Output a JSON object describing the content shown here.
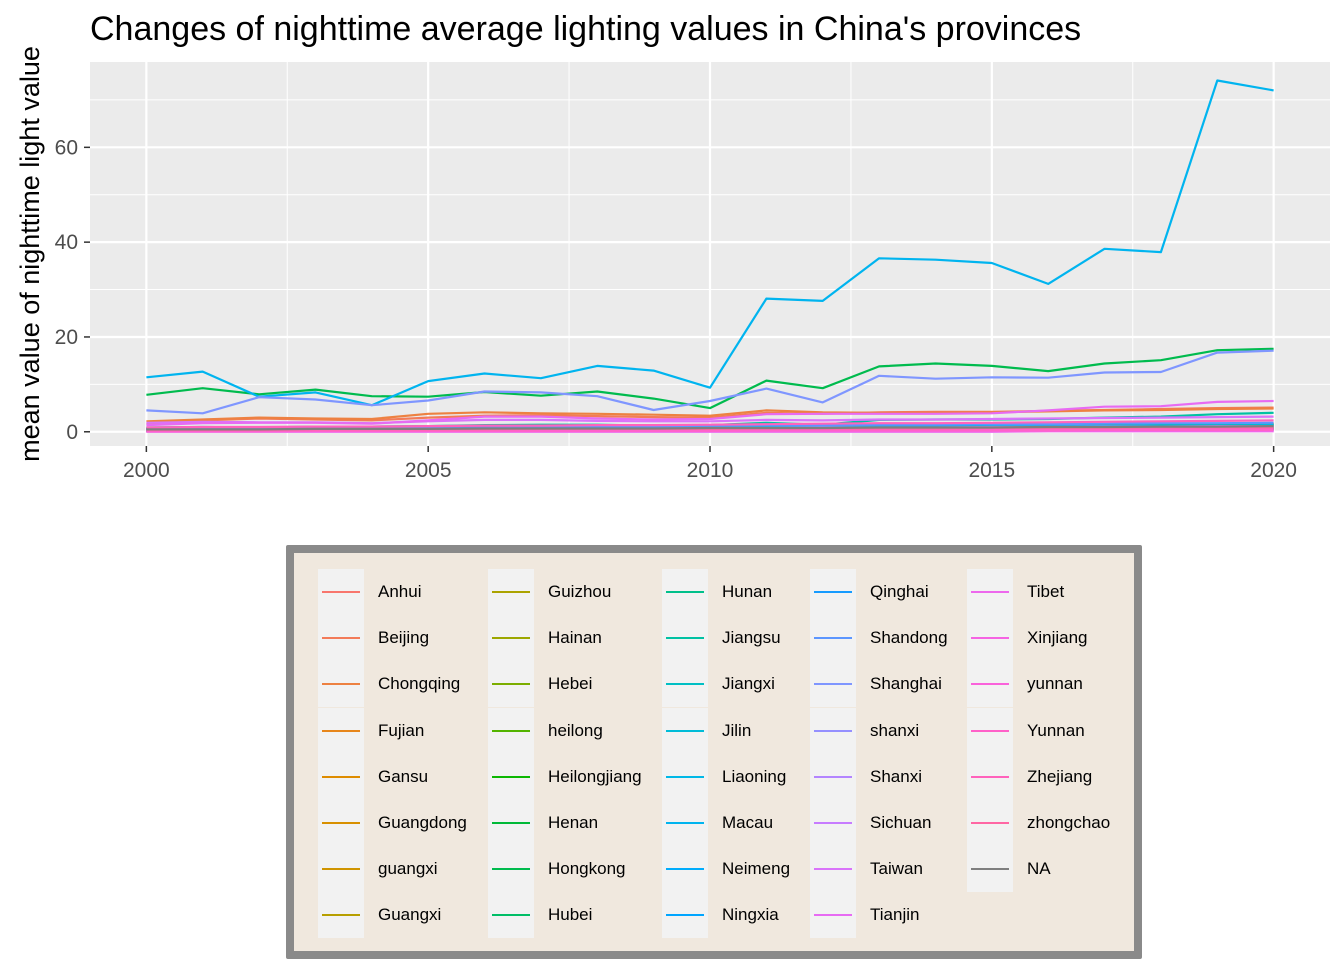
{
  "chart_data": {
    "type": "line",
    "title": "Changes of nighttime average lighting values in China's provinces",
    "xlabel": "",
    "ylabel": "mean value of nighttime light value",
    "xlim": [
      1999,
      2021
    ],
    "ylim": [
      -3,
      78
    ],
    "x_ticks": [
      2000,
      2005,
      2010,
      2015,
      2020
    ],
    "y_ticks": [
      0,
      20,
      40,
      60
    ],
    "grid": true,
    "legend_position": "bottom",
    "x": [
      2000,
      2001,
      2002,
      2003,
      2004,
      2005,
      2006,
      2007,
      2008,
      2009,
      2010,
      2011,
      2012,
      2013,
      2014,
      2015,
      2016,
      2017,
      2018,
      2019,
      2020
    ],
    "series": [
      {
        "name": "Anhui",
        "color": "#F8766D",
        "values": [
          0.4,
          0.5,
          0.5,
          0.6,
          0.6,
          0.6,
          0.7,
          0.7,
          0.7,
          0.7,
          0.8,
          0.9,
          0.9,
          1.0,
          1.0,
          1.0,
          1.1,
          1.1,
          1.2,
          1.3,
          1.3
        ]
      },
      {
        "name": "Beijing",
        "color": "#F37B59",
        "values": [
          1.6,
          2.4,
          2.8,
          2.6,
          2.4,
          3.0,
          3.4,
          3.5,
          3.3,
          3.1,
          3.0,
          4.0,
          3.8,
          4.1,
          4.2,
          4.2,
          4.4,
          4.6,
          4.8,
          5.0,
          5.1
        ]
      },
      {
        "name": "Chongqing",
        "color": "#ED8141",
        "values": [
          2.2,
          2.6,
          3.0,
          2.8,
          2.7,
          3.8,
          4.1,
          3.9,
          3.8,
          3.6,
          3.4,
          4.5,
          4.1,
          4.0,
          4.0,
          4.1,
          4.3,
          4.5,
          4.6,
          4.8,
          4.9
        ]
      },
      {
        "name": "Fujian",
        "color": "#E7861B",
        "values": [
          0.3,
          0.4,
          0.4,
          0.4,
          0.4,
          0.5,
          0.5,
          0.5,
          0.5,
          0.5,
          0.6,
          0.6,
          0.6,
          0.7,
          0.7,
          0.7,
          0.7,
          0.8,
          0.8,
          0.8,
          0.9
        ]
      },
      {
        "name": "Gansu",
        "color": "#DE8C00",
        "values": [
          0.2,
          0.2,
          0.2,
          0.3,
          0.3,
          0.3,
          0.3,
          0.3,
          0.3,
          0.3,
          0.4,
          0.4,
          0.4,
          0.4,
          0.4,
          0.5,
          0.5,
          0.5,
          0.5,
          0.6,
          0.6
        ]
      },
      {
        "name": "Guangdong",
        "color": "#D89000",
        "values": [
          0.6,
          0.7,
          0.7,
          0.8,
          0.8,
          0.9,
          0.9,
          0.9,
          1.0,
          1.0,
          1.1,
          1.2,
          1.2,
          1.3,
          1.3,
          1.4,
          1.4,
          1.5,
          1.6,
          1.6,
          1.7
        ]
      },
      {
        "name": "guangxi",
        "color": "#CF9400",
        "values": [
          0.3,
          0.3,
          0.3,
          0.4,
          0.4,
          0.4,
          0.4,
          0.5,
          0.5,
          0.5,
          0.5,
          0.6,
          0.6,
          0.6,
          0.6,
          0.7,
          0.7,
          0.7,
          0.8,
          0.8,
          0.8
        ]
      },
      {
        "name": "Guangxi",
        "color": "#B79F00",
        "values": [
          0.2,
          0.2,
          0.2,
          0.2,
          0.3,
          0.3,
          0.3,
          0.3,
          0.3,
          0.3,
          0.4,
          0.4,
          0.4,
          0.4,
          0.4,
          0.5,
          0.5,
          0.5,
          0.5,
          0.5,
          0.6
        ]
      },
      {
        "name": "Guizhou",
        "color": "#ABA300",
        "values": [
          0.3,
          0.3,
          0.3,
          0.3,
          0.3,
          0.3,
          0.4,
          0.4,
          0.4,
          0.4,
          0.4,
          0.5,
          0.5,
          0.5,
          0.5,
          0.6,
          0.6,
          0.6,
          0.7,
          0.7,
          0.7
        ]
      },
      {
        "name": "Hainan",
        "color": "#9DA700",
        "values": [
          0.4,
          0.5,
          0.5,
          0.5,
          0.5,
          0.6,
          0.6,
          0.6,
          0.6,
          0.6,
          0.7,
          0.7,
          0.7,
          0.8,
          0.8,
          0.8,
          0.9,
          0.9,
          1.0,
          1.0,
          1.1
        ]
      },
      {
        "name": "Hebei",
        "color": "#7CAE00",
        "values": [
          0.8,
          0.9,
          0.9,
          1.0,
          1.0,
          1.0,
          1.1,
          1.1,
          1.1,
          1.1,
          1.2,
          1.3,
          1.3,
          1.4,
          1.4,
          1.4,
          1.5,
          1.5,
          1.6,
          1.6,
          1.7
        ]
      },
      {
        "name": "heilong",
        "color": "#53B400",
        "values": [
          0.2,
          0.2,
          0.2,
          0.2,
          0.2,
          0.3,
          0.3,
          0.3,
          0.3,
          0.3,
          0.3,
          0.4,
          0.4,
          0.4,
          0.4,
          0.4,
          0.4,
          0.5,
          0.5,
          0.5,
          0.5
        ]
      },
      {
        "name": "Heilongjiang",
        "color": "#0CB702",
        "values": [
          0.2,
          0.2,
          0.2,
          0.2,
          0.3,
          0.3,
          0.3,
          0.3,
          0.3,
          0.3,
          0.3,
          0.4,
          0.4,
          0.4,
          0.4,
          0.4,
          0.5,
          0.5,
          0.5,
          0.5,
          0.6
        ]
      },
      {
        "name": "Henan",
        "color": "#00B938",
        "values": [
          0.6,
          0.7,
          0.7,
          0.8,
          0.8,
          0.8,
          0.9,
          0.9,
          0.9,
          0.9,
          1.0,
          1.1,
          1.1,
          1.2,
          1.2,
          1.2,
          1.3,
          1.3,
          1.4,
          1.4,
          1.5
        ]
      },
      {
        "name": "Hongkong",
        "color": "#00BB4E",
        "values": [
          7.8,
          9.2,
          7.9,
          8.9,
          7.5,
          7.4,
          8.4,
          7.6,
          8.5,
          7.0,
          5.0,
          10.8,
          9.2,
          13.8,
          14.4,
          13.9,
          12.8,
          14.4,
          15.1,
          17.2,
          17.5
        ]
      },
      {
        "name": "Hubei",
        "color": "#00BE67",
        "values": [
          0.5,
          0.6,
          0.6,
          0.7,
          0.7,
          0.8,
          0.8,
          0.8,
          0.9,
          0.9,
          1.0,
          1.1,
          1.1,
          1.2,
          1.2,
          1.3,
          1.3,
          1.4,
          1.4,
          1.5,
          1.6
        ]
      },
      {
        "name": "Hunan",
        "color": "#00C08B",
        "values": [
          0.4,
          0.5,
          0.5,
          0.5,
          0.6,
          0.6,
          0.6,
          0.7,
          0.7,
          0.7,
          0.8,
          0.9,
          0.9,
          1.0,
          1.0,
          1.0,
          1.1,
          1.1,
          1.2,
          1.2,
          1.3
        ]
      },
      {
        "name": "Jiangsu",
        "color": "#00C1A3",
        "values": [
          0.9,
          1.0,
          0.9,
          1.1,
          1.1,
          1.2,
          1.4,
          1.5,
          1.5,
          1.3,
          1.4,
          1.9,
          1.5,
          2.5,
          2.6,
          2.6,
          2.7,
          3.0,
          3.2,
          3.7,
          4.0
        ]
      },
      {
        "name": "Jiangxi",
        "color": "#00BFC4",
        "values": [
          0.3,
          0.3,
          0.3,
          0.4,
          0.4,
          0.4,
          0.4,
          0.4,
          0.5,
          0.5,
          0.5,
          0.6,
          0.6,
          0.6,
          0.6,
          0.7,
          0.7,
          0.7,
          0.8,
          0.8,
          0.8
        ]
      },
      {
        "name": "Jilin",
        "color": "#00BCD8",
        "values": [
          0.3,
          0.3,
          0.3,
          0.3,
          0.4,
          0.4,
          0.4,
          0.4,
          0.4,
          0.4,
          0.5,
          0.5,
          0.5,
          0.6,
          0.6,
          0.6,
          0.6,
          0.7,
          0.7,
          0.7,
          0.7
        ]
      },
      {
        "name": "Liaoning",
        "color": "#00B8E7",
        "values": [
          0.6,
          0.7,
          0.7,
          0.7,
          0.8,
          0.8,
          0.8,
          0.9,
          0.9,
          0.9,
          1.0,
          1.0,
          1.1,
          1.1,
          1.1,
          1.2,
          1.2,
          1.2,
          1.3,
          1.3,
          1.4
        ]
      },
      {
        "name": "Macau",
        "color": "#00B4EF",
        "values": [
          11.5,
          12.7,
          7.4,
          8.3,
          5.6,
          10.7,
          12.3,
          11.3,
          13.9,
          12.9,
          9.3,
          28.1,
          27.6,
          36.6,
          36.3,
          35.6,
          31.2,
          38.6,
          37.9,
          74.1,
          72.0
        ]
      },
      {
        "name": "Neimeng",
        "color": "#00ACFC",
        "values": [
          0.1,
          0.1,
          0.1,
          0.1,
          0.2,
          0.2,
          0.2,
          0.2,
          0.2,
          0.2,
          0.2,
          0.3,
          0.3,
          0.3,
          0.3,
          0.3,
          0.3,
          0.3,
          0.4,
          0.4,
          0.4
        ]
      },
      {
        "name": "Ningxia",
        "color": "#00A5FF",
        "values": [
          0.3,
          0.3,
          0.3,
          0.4,
          0.4,
          0.4,
          0.4,
          0.4,
          0.5,
          0.5,
          0.5,
          0.6,
          0.6,
          0.6,
          0.7,
          0.7,
          0.7,
          0.8,
          0.8,
          0.8,
          0.9
        ]
      },
      {
        "name": "Qinghai",
        "color": "#169BFF",
        "values": [
          0.1,
          0.1,
          0.1,
          0.1,
          0.1,
          0.1,
          0.1,
          0.1,
          0.1,
          0.1,
          0.1,
          0.2,
          0.2,
          0.2,
          0.2,
          0.2,
          0.2,
          0.2,
          0.2,
          0.2,
          0.2
        ]
      },
      {
        "name": "Shandong",
        "color": "#5C96FF",
        "values": [
          0.8,
          0.9,
          0.9,
          1.0,
          1.0,
          1.1,
          1.1,
          1.2,
          1.2,
          1.2,
          1.3,
          1.4,
          1.4,
          1.5,
          1.5,
          1.6,
          1.6,
          1.7,
          1.8,
          1.8,
          1.9
        ]
      },
      {
        "name": "Shanghai",
        "color": "#7F96FF",
        "values": [
          4.5,
          3.9,
          7.3,
          6.8,
          5.6,
          6.6,
          8.5,
          8.3,
          7.5,
          4.6,
          6.5,
          9.1,
          6.2,
          11.8,
          11.2,
          11.5,
          11.4,
          12.5,
          12.6,
          16.7,
          17.1
        ]
      },
      {
        "name": "shanxi",
        "color": "#9590FF",
        "values": [
          0.2,
          0.3,
          0.3,
          0.3,
          0.3,
          0.3,
          0.4,
          0.4,
          0.4,
          0.4,
          0.4,
          0.5,
          0.5,
          0.5,
          0.5,
          0.6,
          0.6,
          0.6,
          0.6,
          0.7,
          0.7
        ]
      },
      {
        "name": "Shanxi",
        "color": "#B385FF",
        "values": [
          0.4,
          0.5,
          0.5,
          0.6,
          0.6,
          0.6,
          0.7,
          0.7,
          0.7,
          0.7,
          0.8,
          0.8,
          0.9,
          0.9,
          0.9,
          1.0,
          1.0,
          1.1,
          1.1,
          1.2,
          1.2
        ]
      },
      {
        "name": "Sichuan",
        "color": "#C77CFF",
        "values": [
          0.3,
          0.3,
          0.3,
          0.3,
          0.4,
          0.4,
          0.4,
          0.4,
          0.4,
          0.4,
          0.5,
          0.5,
          0.5,
          0.6,
          0.6,
          0.6,
          0.6,
          0.7,
          0.7,
          0.7,
          0.8
        ]
      },
      {
        "name": "Taiwan",
        "color": "#D974FA",
        "values": [
          1.9,
          2.1,
          2.0,
          2.0,
          1.8,
          2.2,
          2.5,
          2.5,
          2.3,
          2.2,
          2.2,
          2.5,
          2.4,
          2.6,
          2.6,
          2.7,
          2.8,
          2.9,
          3.0,
          3.1,
          3.2
        ]
      },
      {
        "name": "Tianjin",
        "color": "#E76BF3",
        "values": [
          1.4,
          1.8,
          1.9,
          1.9,
          1.7,
          2.4,
          3.2,
          3.2,
          2.8,
          2.6,
          2.7,
          3.7,
          3.8,
          3.8,
          3.8,
          3.9,
          4.5,
          5.3,
          5.4,
          6.3,
          6.5
        ]
      },
      {
        "name": "Tibet",
        "color": "#ED68ED",
        "values": [
          0.0,
          0.0,
          0.0,
          0.0,
          0.0,
          0.0,
          0.0,
          0.0,
          0.0,
          0.0,
          0.0,
          0.0,
          0.0,
          0.0,
          0.0,
          0.0,
          0.1,
          0.1,
          0.1,
          0.1,
          0.1
        ]
      },
      {
        "name": "Xinjiang",
        "color": "#F564E3",
        "values": [
          0.1,
          0.1,
          0.1,
          0.1,
          0.1,
          0.1,
          0.1,
          0.1,
          0.1,
          0.2,
          0.2,
          0.2,
          0.2,
          0.2,
          0.2,
          0.2,
          0.2,
          0.3,
          0.3,
          0.3,
          0.3
        ]
      },
      {
        "name": "yunnan",
        "color": "#FA62DB",
        "values": [
          0.2,
          0.2,
          0.2,
          0.2,
          0.2,
          0.2,
          0.3,
          0.3,
          0.3,
          0.3,
          0.3,
          0.3,
          0.3,
          0.4,
          0.4,
          0.4,
          0.4,
          0.4,
          0.5,
          0.5,
          0.5
        ]
      },
      {
        "name": "Yunnan",
        "color": "#FF61C9",
        "values": [
          0.1,
          0.1,
          0.1,
          0.2,
          0.2,
          0.2,
          0.2,
          0.2,
          0.2,
          0.2,
          0.2,
          0.3,
          0.3,
          0.3,
          0.3,
          0.3,
          0.3,
          0.4,
          0.4,
          0.4,
          0.4
        ]
      },
      {
        "name": "Zhejiang",
        "color": "#FF62BC",
        "values": [
          0.9,
          1.0,
          1.0,
          1.1,
          1.1,
          1.2,
          1.3,
          1.3,
          1.4,
          1.4,
          1.5,
          1.6,
          1.7,
          1.8,
          1.8,
          1.9,
          2.0,
          2.1,
          2.2,
          2.3,
          2.4
        ]
      },
      {
        "name": "zhongchao",
        "color": "#FF67A4",
        "values": [
          0.4,
          0.4,
          0.4,
          0.5,
          0.5,
          0.5,
          0.5,
          0.6,
          0.6,
          0.6,
          0.6,
          0.7,
          0.7,
          0.7,
          0.7,
          0.8,
          0.8,
          0.8,
          0.9,
          0.9,
          0.9
        ]
      },
      {
        "name": "NA",
        "color": "#7F7F7F",
        "values": [
          0.5,
          0.5,
          0.5,
          0.6,
          0.6,
          0.6,
          0.7,
          0.7,
          0.7,
          0.7,
          0.8,
          0.8,
          0.8,
          0.9,
          0.9,
          0.9,
          1.0,
          1.0,
          1.1,
          1.1,
          1.2
        ]
      }
    ]
  }
}
